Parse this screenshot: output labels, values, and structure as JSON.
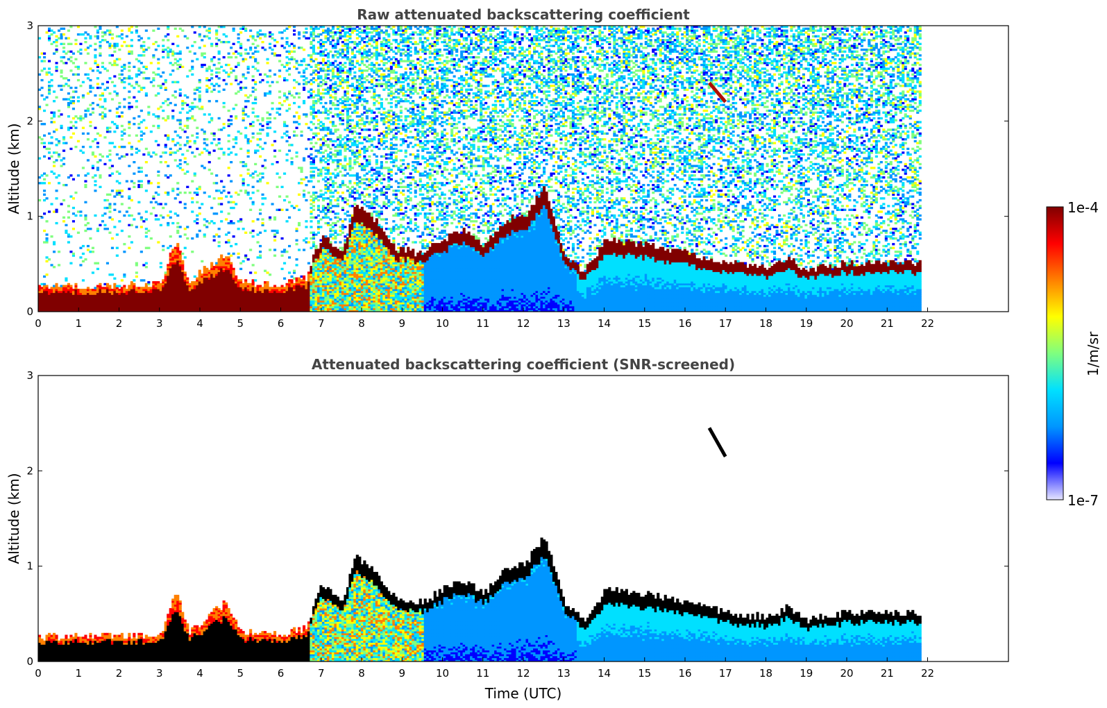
{
  "chart_data": [
    {
      "type": "heatmap",
      "title": "Raw attenuated backscattering coefficient",
      "xlabel": "",
      "ylabel": "Altitude (km)",
      "xlim": [
        0,
        24
      ],
      "ylim": [
        0,
        3
      ],
      "xticks": [
        "0",
        "1",
        "2",
        "3",
        "4",
        "5",
        "6",
        "7",
        "8",
        "9",
        "10",
        "11",
        "12",
        "13",
        "14",
        "15",
        "16",
        "17",
        "18",
        "19",
        "20",
        "21",
        "22"
      ],
      "yticks": [
        "0",
        "1",
        "2",
        "3"
      ],
      "data_end_time": 21.8,
      "boundary_layer_top_km": [
        [
          0,
          0.25
        ],
        [
          1,
          0.26
        ],
        [
          2,
          0.26
        ],
        [
          3,
          0.28
        ],
        [
          3.4,
          0.75
        ],
        [
          3.7,
          0.3
        ],
        [
          4.6,
          0.6
        ],
        [
          5,
          0.3
        ],
        [
          6,
          0.28
        ],
        [
          6.6,
          0.35
        ],
        [
          7,
          0.8
        ],
        [
          7.5,
          0.6
        ],
        [
          7.8,
          1.1
        ],
        [
          8.3,
          0.95
        ],
        [
          8.8,
          0.65
        ],
        [
          9.5,
          0.6
        ],
        [
          10,
          0.75
        ],
        [
          10.5,
          0.85
        ],
        [
          11,
          0.7
        ],
        [
          11.5,
          0.95
        ],
        [
          12,
          1.0
        ],
        [
          12.5,
          1.3
        ],
        [
          13,
          0.6
        ],
        [
          13.5,
          0.4
        ],
        [
          14,
          0.75
        ],
        [
          15,
          0.7
        ],
        [
          15.5,
          0.65
        ],
        [
          16,
          0.6
        ],
        [
          17,
          0.5
        ],
        [
          18,
          0.45
        ],
        [
          18.5,
          0.55
        ],
        [
          19,
          0.42
        ],
        [
          20,
          0.5
        ],
        [
          21.8,
          0.5
        ]
      ],
      "features": [
        {
          "label": "elevated cloud",
          "time_range": [
            16.6,
            17.0
          ],
          "altitude_range": [
            2.2,
            2.4
          ]
        }
      ]
    },
    {
      "type": "heatmap",
      "title": "Attenuated backscattering coefficient (SNR-screened)",
      "xlabel": "Time (UTC)",
      "ylabel": "Altitude (km)",
      "xlim": [
        0,
        24
      ],
      "ylim": [
        0,
        3
      ],
      "xticks": [
        "0",
        "1",
        "2",
        "3",
        "4",
        "5",
        "6",
        "7",
        "8",
        "9",
        "10",
        "11",
        "12",
        "13",
        "14",
        "15",
        "16",
        "17",
        "18",
        "19",
        "20",
        "21",
        "22"
      ],
      "yticks": [
        "0",
        "1",
        "2",
        "3"
      ],
      "data_end_time": 21.8,
      "features": [
        {
          "label": "elevated cloud",
          "time_range": [
            16.6,
            17.0
          ],
          "altitude_range": [
            2.15,
            2.45
          ]
        }
      ]
    }
  ],
  "colorbar": {
    "label": "1/m/sr",
    "min_label": "1e-7",
    "max_label": "1e-4",
    "scale": "log",
    "colormap": "jet",
    "stops": [
      "#e6e6ff",
      "#0000ff",
      "#0096ff",
      "#00e0ff",
      "#7fff7f",
      "#ffff00",
      "#ff8000",
      "#ff0000",
      "#800000"
    ]
  }
}
